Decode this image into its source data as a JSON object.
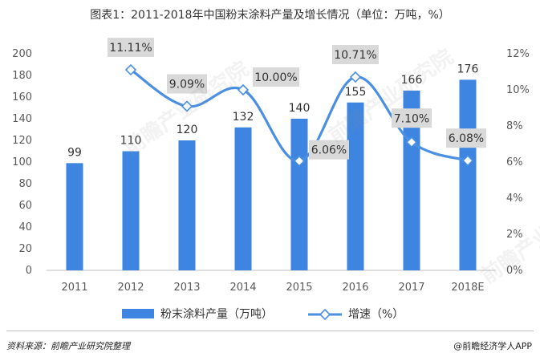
{
  "title": "图表1：2011-2018年中国粉末涂料产量及增长情况（单位：万吨，%）",
  "chart_data": {
    "type": "bar",
    "categories": [
      "2011",
      "2012",
      "2013",
      "2014",
      "2015",
      "2016",
      "2017",
      "2018E"
    ],
    "series": [
      {
        "name": "粉末涂料产量（万吨）",
        "type": "bar",
        "axis": "left",
        "values": [
          99,
          110,
          120,
          132,
          140,
          155,
          166,
          176
        ],
        "labels": [
          "99",
          "110",
          "120",
          "132",
          "140",
          "155",
          "166",
          "176"
        ]
      },
      {
        "name": "增速（%）",
        "type": "line",
        "axis": "right",
        "values": [
          null,
          11.11,
          9.09,
          10.0,
          6.06,
          10.71,
          7.1,
          6.08
        ],
        "labels": [
          "",
          "11.11%",
          "9.09%",
          "10.00%",
          "6.06%",
          "10.71%",
          "7.10%",
          "6.08%"
        ]
      }
    ],
    "y_left": {
      "min": 0,
      "max": 200,
      "step": 20,
      "ticks": [
        "0",
        "20",
        "40",
        "60",
        "80",
        "100",
        "120",
        "140",
        "160",
        "180",
        "200"
      ]
    },
    "y_right": {
      "min": 0,
      "max": 12,
      "step": 2,
      "ticks": [
        "0%",
        "2%",
        "4%",
        "6%",
        "8%",
        "10%",
        "12%"
      ]
    },
    "grid": false,
    "legend_position": "bottom",
    "colors": {
      "bar": "#3d85e0",
      "line": "#4a90e2",
      "marker_fill": "#ffffff",
      "label_box": "#d9d9d9",
      "axis_text": "#595959"
    }
  },
  "footer": {
    "source": "资料来源：前瞻产业研究院整理",
    "credit": "@前瞻经济学人APP"
  },
  "watermark": "前瞻产业研究院"
}
